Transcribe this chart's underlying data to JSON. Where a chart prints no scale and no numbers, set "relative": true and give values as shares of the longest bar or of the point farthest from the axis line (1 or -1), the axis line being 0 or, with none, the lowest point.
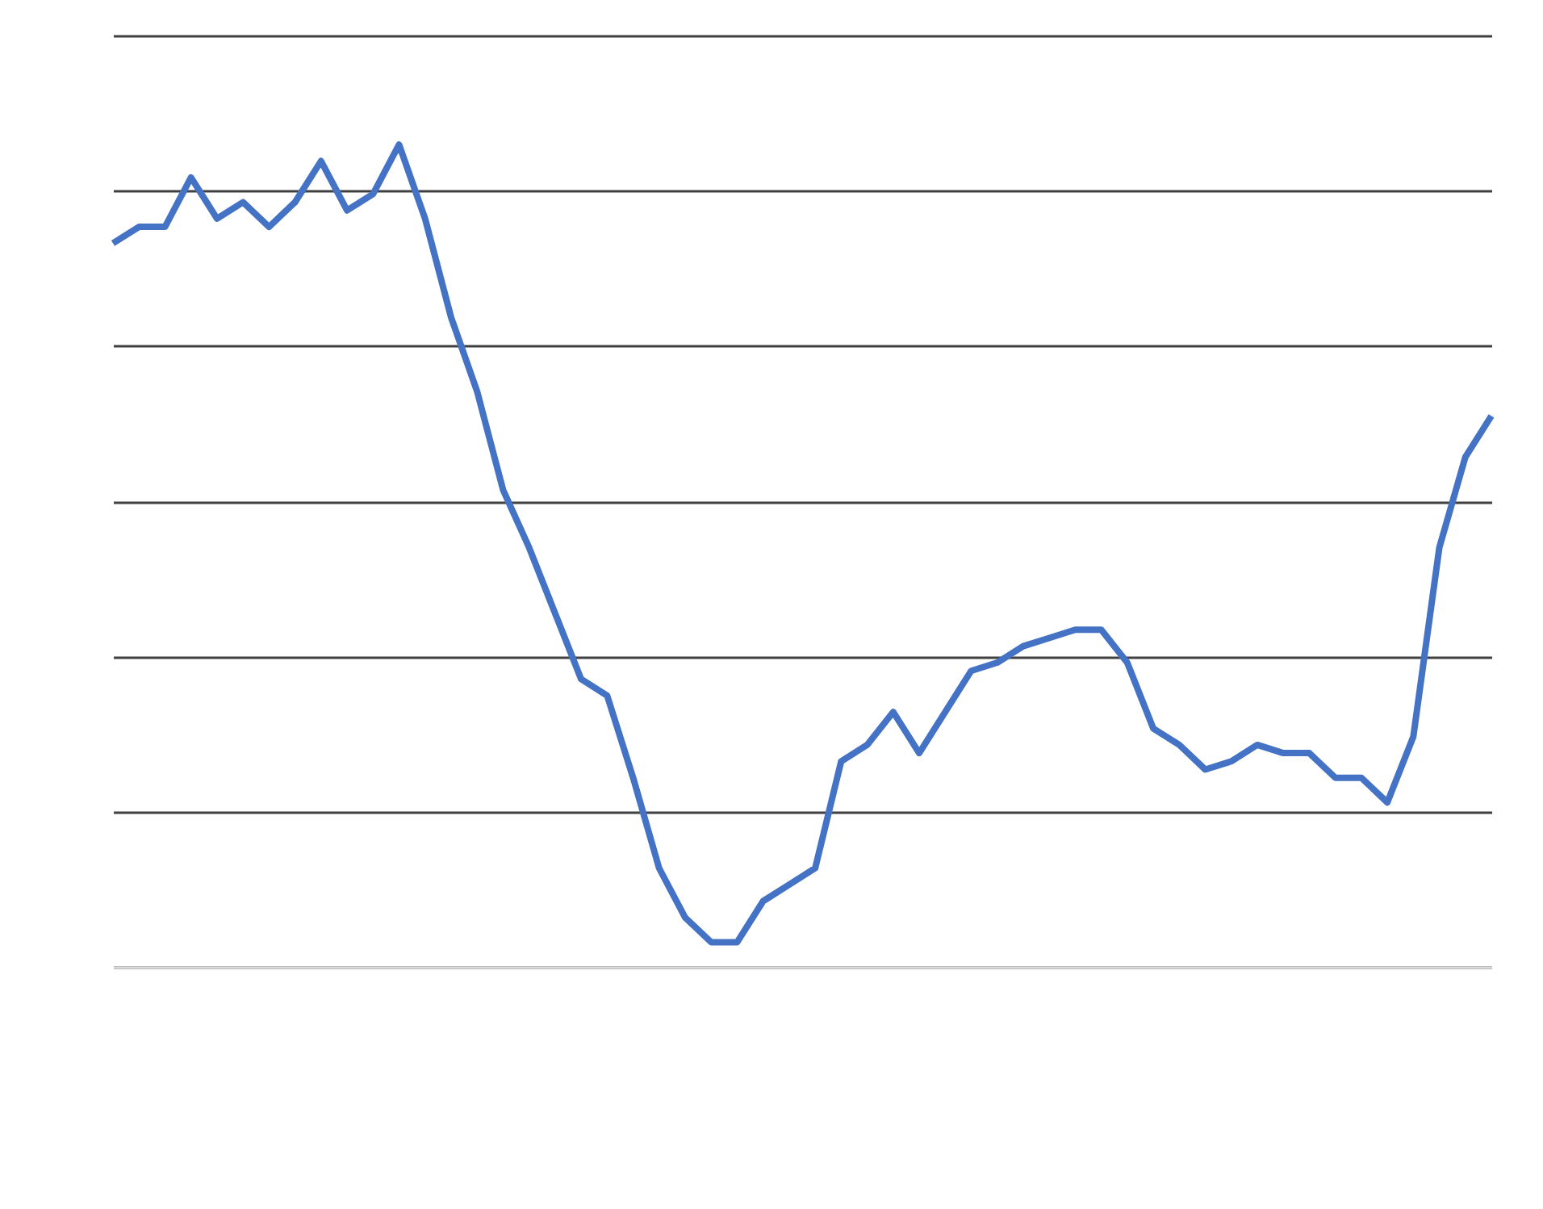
{
  "chart_data": {
    "type": "line",
    "relative": true,
    "grid": "y",
    "line_style": "solid",
    "marker": "none",
    "categories": [
      null,
      null,
      null,
      null,
      null,
      null,
      null,
      null,
      null,
      null,
      null,
      null,
      null,
      null,
      null,
      null,
      null,
      null,
      null,
      null,
      null,
      null,
      null,
      null,
      null,
      null,
      null,
      null,
      null,
      null,
      null,
      null,
      null,
      null,
      null,
      null,
      null,
      null,
      null,
      null,
      null,
      null,
      null,
      null,
      null,
      null,
      null,
      null,
      null,
      null,
      null,
      null,
      null,
      null
    ],
    "series": [
      {
        "color": "#4472c4",
        "values": [
          0.88,
          0.9,
          0.9,
          0.96,
          0.91,
          0.93,
          0.9,
          0.93,
          0.98,
          0.92,
          0.94,
          1.0,
          0.91,
          0.79,
          0.7,
          0.58,
          0.51,
          0.43,
          0.35,
          0.33,
          0.23,
          0.12,
          0.06,
          0.03,
          0.03,
          0.08,
          0.1,
          0.12,
          0.25,
          0.27,
          0.31,
          0.26,
          0.31,
          0.36,
          0.37,
          0.39,
          0.4,
          0.41,
          0.41,
          0.37,
          0.29,
          0.27,
          0.24,
          0.25,
          0.27,
          0.26,
          0.26,
          0.23,
          0.23,
          0.2,
          0.28,
          0.51,
          0.62,
          0.67
        ]
      }
    ]
  }
}
